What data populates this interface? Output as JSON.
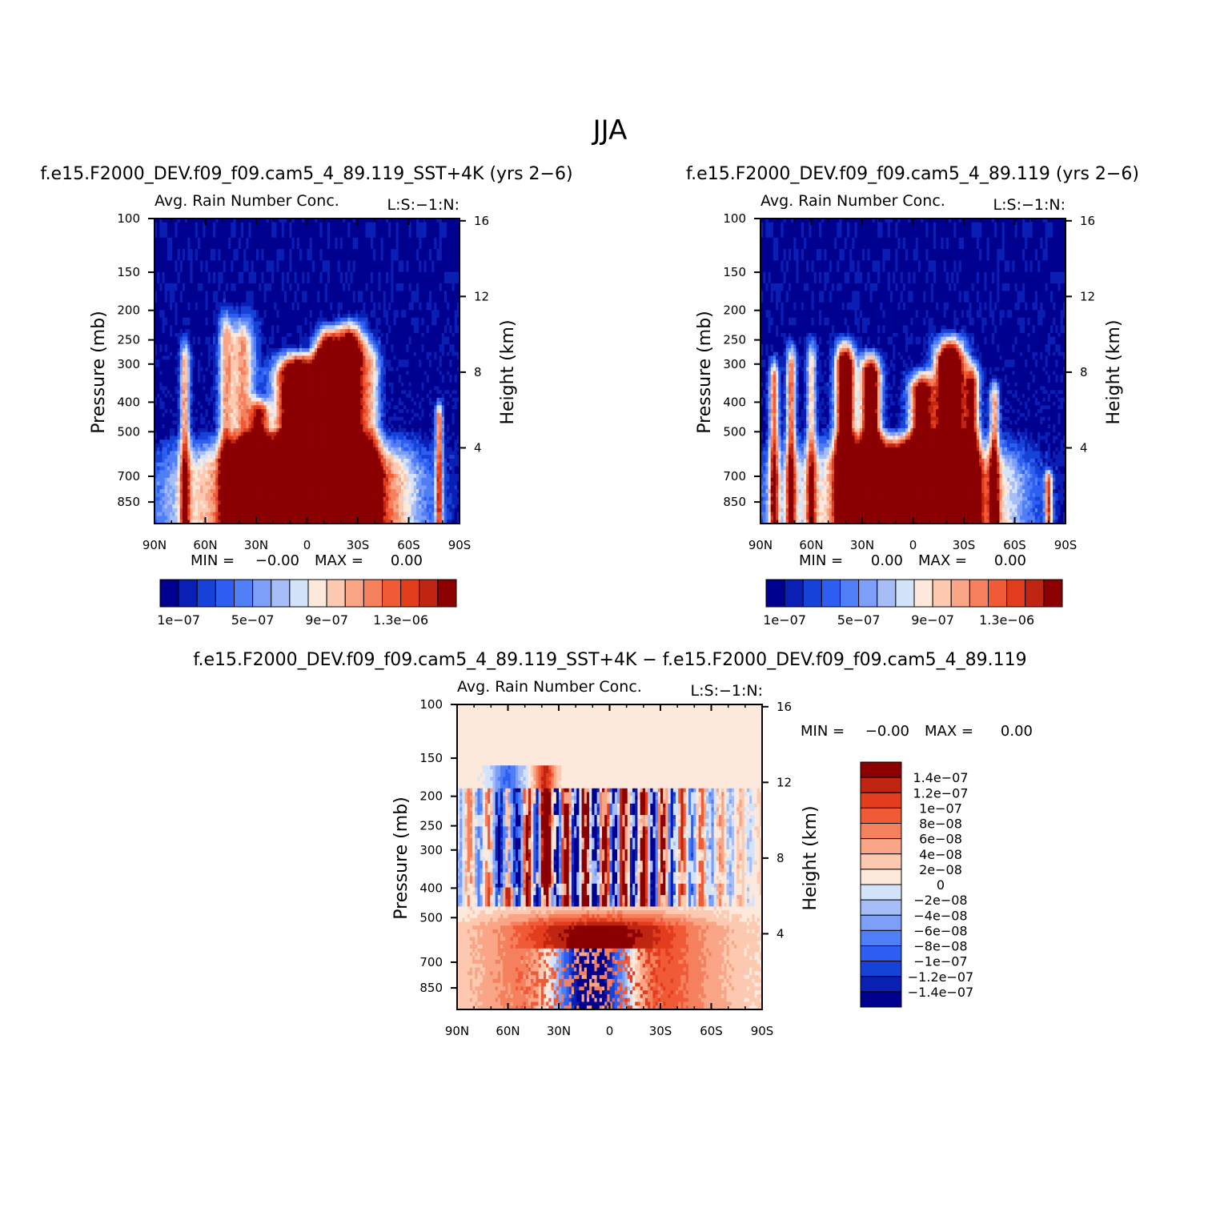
{
  "figure": {
    "title": "JJA"
  },
  "colors": {
    "seq": [
      "#00008f",
      "#0a1fb4",
      "#1642d8",
      "#2e5ff2",
      "#4f7ef7",
      "#7d9ef9",
      "#a6bdf7",
      "#d3e4fa",
      "#fde8dc",
      "#fdc9b1",
      "#f9a586",
      "#f5805d",
      "#f15a37",
      "#e23d1d",
      "#bf2510",
      "#8b0000"
    ],
    "div": [
      "#00008f",
      "#0a1fb4",
      "#1642d8",
      "#2e5ff2",
      "#4f7ef7",
      "#7d9ef9",
      "#a6bdf7",
      "#d3e4fa",
      "#fde8dc",
      "#fdc9b1",
      "#f9a586",
      "#f5805d",
      "#f15a37",
      "#e23d1d",
      "#bf2510",
      "#8b0000"
    ]
  },
  "chart_data": [
    {
      "type": "heatmap",
      "case_title": "f.e15.F2000_DEV.f09_f09.cam5_4_89.119_SST+4K (yrs 2−6)",
      "var_title": "Avg. Rain Number Conc.",
      "var_tag": "L:S:−1:N:",
      "ylabel": "Pressure (mb)",
      "ylabel_right": "Height (km)",
      "x_ticks": [
        "90N",
        "60N",
        "30N",
        "0",
        "30S",
        "60S",
        "90S"
      ],
      "y_ticks": [
        "100",
        "150",
        "200",
        "250",
        "300",
        "400",
        "500",
        "700",
        "850"
      ],
      "y_ticks_right": [
        "16",
        "12",
        "8",
        "4"
      ],
      "stats": {
        "min_label": "MIN =",
        "min_value": "−0.00",
        "max_label": "MAX =",
        "max_value": "0.00"
      },
      "colorbar_labels": [
        "1e−07",
        "5e−07",
        "9e−07",
        "1.3e−06"
      ],
      "features": [
        {
          "lat": 5,
          "top": 260,
          "w": 9,
          "amp": 1.7
        },
        {
          "lat": -12,
          "top": 215,
          "w": 5,
          "amp": 1.6
        },
        {
          "lat": -25,
          "top": 205,
          "w": 6,
          "amp": 1.6
        },
        {
          "lat": 38,
          "top": 190,
          "w": 5,
          "amp": 0.7
        },
        {
          "lat": 28,
          "top": 370,
          "w": 4,
          "amp": 0.9
        },
        {
          "lat": 48,
          "top": 180,
          "w": 3,
          "amp": 0.6
        },
        {
          "lat": 72,
          "top": 230,
          "w": 2,
          "amp": 0.7
        },
        {
          "lat": -38,
          "top": 230,
          "w": 4,
          "amp": 0.5
        },
        {
          "lat": -78,
          "top": 380,
          "w": 1.5,
          "amp": 0.8
        }
      ]
    },
    {
      "type": "heatmap",
      "case_title": "f.e15.F2000_DEV.f09_f09.cam5_4_89.119 (yrs 2−6)",
      "var_title": "Avg. Rain Number Conc.",
      "var_tag": "L:S:−1:N:",
      "ylabel": "Pressure (mb)",
      "ylabel_right": "Height (km)",
      "x_ticks": [
        "90N",
        "60N",
        "30N",
        "0",
        "30S",
        "60S",
        "90S"
      ],
      "y_ticks": [
        "100",
        "150",
        "200",
        "250",
        "300",
        "400",
        "500",
        "700",
        "850"
      ],
      "y_ticks_right": [
        "16",
        "12",
        "8",
        "4"
      ],
      "stats": {
        "min_label": "MIN =",
        "min_value": "0.00",
        "max_label": "MAX =",
        "max_value": "0.00"
      },
      "colorbar_labels": [
        "1e−07",
        "5e−07",
        "9e−07",
        "1.3e−06"
      ],
      "features": [
        {
          "lat": 40,
          "top": 235,
          "w": 4,
          "amp": 1.4
        },
        {
          "lat": 25,
          "top": 260,
          "w": 4,
          "amp": 1.4
        },
        {
          "lat": -5,
          "top": 300,
          "w": 5,
          "amp": 1.2
        },
        {
          "lat": -22,
          "top": 230,
          "w": 6,
          "amp": 1.7
        },
        {
          "lat": -35,
          "top": 280,
          "w": 3,
          "amp": 0.9
        },
        {
          "lat": -48,
          "top": 320,
          "w": 2,
          "amp": 0.7
        },
        {
          "lat": 72,
          "top": 240,
          "w": 2,
          "amp": 0.8
        },
        {
          "lat": 82,
          "top": 270,
          "w": 2,
          "amp": 0.8
        },
        {
          "lat": 60,
          "top": 230,
          "w": 2,
          "amp": 0.6
        },
        {
          "lat": -80,
          "top": 650,
          "w": 1.5,
          "amp": 0.8
        }
      ]
    },
    {
      "type": "heatmap",
      "case_title": "f.e15.F2000_DEV.f09_f09.cam5_4_89.119_SST+4K − f.e15.F2000_DEV.f09_f09.cam5_4_89.119",
      "var_title": "Avg. Rain Number Conc.",
      "var_tag": "L:S:−1:N:",
      "ylabel": "Pressure (mb)",
      "ylabel_right": "Height (km)",
      "x_ticks": [
        "90N",
        "60N",
        "30N",
        "0",
        "30S",
        "60S",
        "90S"
      ],
      "y_ticks": [
        "100",
        "150",
        "200",
        "250",
        "300",
        "400",
        "500",
        "700",
        "850"
      ],
      "y_ticks_right": [
        "16",
        "12",
        "8",
        "4"
      ],
      "stats": {
        "min_label": "MIN =",
        "min_value": "−0.00",
        "max_label": "MAX =",
        "max_value": "0.00"
      },
      "colorbar_labels": [
        "1.4e−07",
        "1.2e−07",
        "1e−07",
        "8e−08",
        "6e−08",
        "4e−08",
        "2e−08",
        "0",
        "−2e−08",
        "−4e−08",
        "−6e−08",
        "−8e−08",
        "−1e−07",
        "−1.2e−07",
        "−1.4e−07"
      ]
    }
  ]
}
